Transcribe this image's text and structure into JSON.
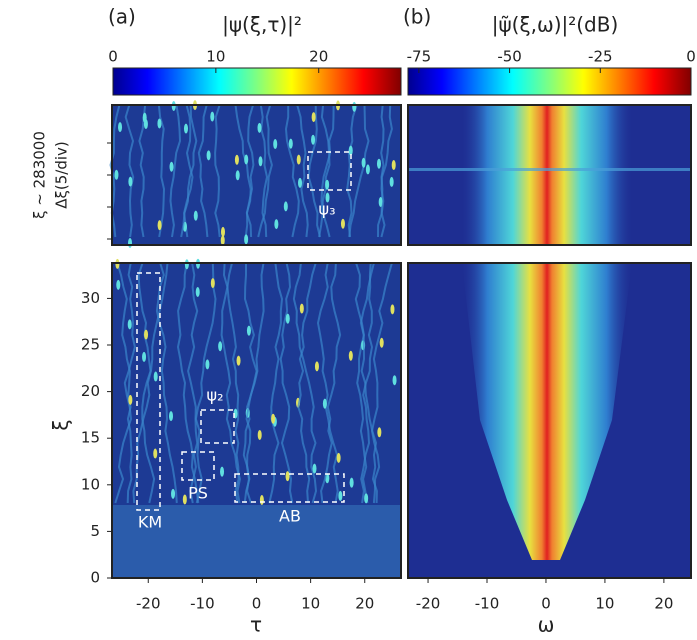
{
  "chart_data": [
    {
      "type": "heatmap",
      "panel_label": "(a)",
      "colorbar": {
        "title": "|ψ(ξ,τ)|²",
        "lim": [
          0,
          28
        ],
        "ticks": [
          0,
          10,
          20
        ]
      },
      "xlabel": "τ",
      "xlim": [
        -26.7,
        26.7
      ],
      "xticks": [
        -20,
        -10,
        0,
        10,
        20
      ],
      "ylabel": "ξ",
      "ylim": [
        0,
        33.8
      ],
      "yticks": [
        0,
        5,
        10,
        15,
        20,
        25,
        30
      ],
      "inset_ylabel": [
        "ξ ~ 283000",
        "Δξ(5/div)"
      ],
      "annotations": [
        "ψ₃",
        "ψ₂",
        "KM",
        "PS",
        "AB"
      ]
    },
    {
      "type": "heatmap",
      "panel_label": "(b)",
      "colorbar": {
        "title": "|ψ̃(ξ,ω)|²(dB)",
        "lim": [
          -78,
          0
        ],
        "ticks": [
          -75,
          -50,
          -25,
          0
        ]
      },
      "xlabel": "ω",
      "xlim": [
        -23.4,
        24.6
      ],
      "xticks": [
        -20,
        -10,
        0,
        10,
        20
      ]
    }
  ]
}
